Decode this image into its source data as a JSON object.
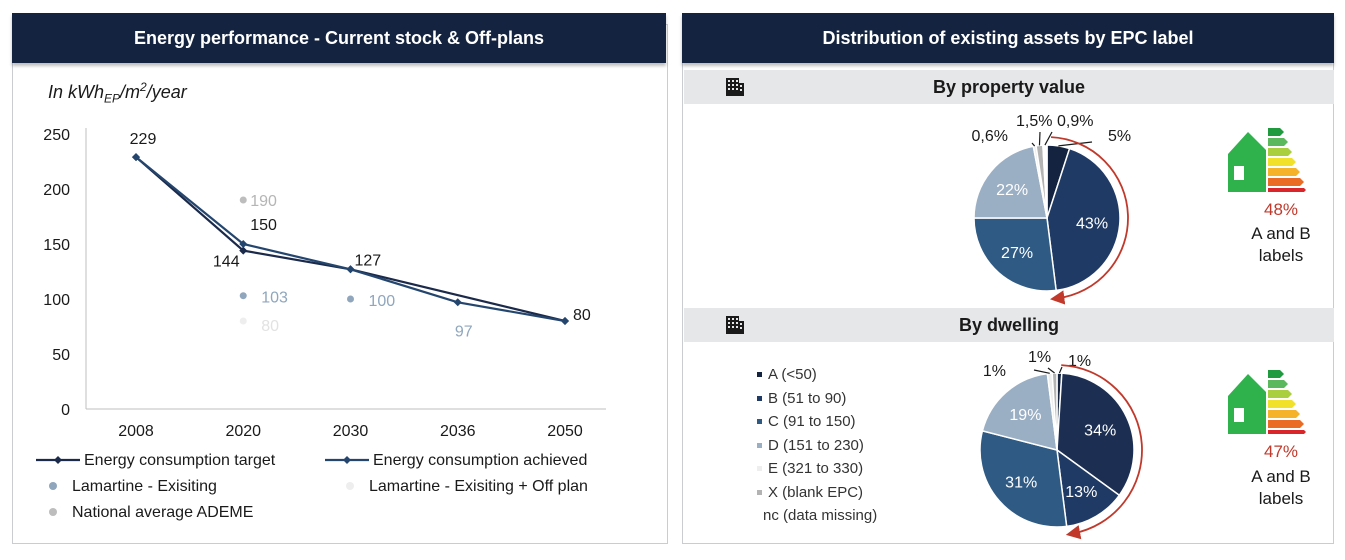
{
  "left_panel": {
    "title": "Energy performance - Current stock & Off-plans",
    "unit_prefix": "In kWh",
    "unit_sub": "EP",
    "unit_mid": "/m",
    "unit_sup": "2",
    "unit_suffix": "/year"
  },
  "right_panel": {
    "title": "Distribution of existing assets by EPC label",
    "by_value_title": "By property value",
    "by_dwelling_title": "By dwelling",
    "by_value_ab_pct": "48%",
    "by_dwelling_ab_pct": "47%",
    "ab_label_line1": "A and B",
    "ab_label_line2": "labels",
    "epc_legend": [
      {
        "label": "A (<50)",
        "color": "#14233f"
      },
      {
        "label": "B (51 to 90)",
        "color": "#1f3a64"
      },
      {
        "label": "C (91 to 150)",
        "color": "#2e5a84"
      },
      {
        "label": "D (151 to 230)",
        "color": "#9aaec4"
      },
      {
        "label": "E (321 to 330)",
        "color": "#eeeeee"
      },
      {
        "label": "X (blank EPC)",
        "color": "#b3b3b3"
      },
      {
        "label": "nc (data missing)",
        "color": ""
      }
    ]
  },
  "line_legend": [
    {
      "label": "Energy consumption target",
      "kind": "line",
      "color": "#1b2a4a"
    },
    {
      "label": "Energy consumption achieved",
      "kind": "line",
      "color": "#24466e"
    },
    {
      "label": "Lamartine - Exisiting",
      "kind": "dot",
      "color": "#8fa6bd"
    },
    {
      "label": "Lamartine - Exisiting + Off plan",
      "kind": "dot",
      "color": "#eeeeee"
    },
    {
      "label": "National average ADEME",
      "kind": "dot",
      "color": "#bdbdbd"
    }
  ],
  "chart_data": [
    {
      "type": "line",
      "x": [
        "2008",
        "2020",
        "2030",
        "2036",
        "2050"
      ],
      "ylim": [
        0,
        250
      ],
      "yticks": [
        0,
        50,
        100,
        150,
        200,
        250
      ],
      "series": [
        {
          "name": "Energy consumption target",
          "color": "#1b2a4a",
          "points": [
            {
              "x": "2008",
              "y": 229
            },
            {
              "x": "2020",
              "y": 144
            },
            {
              "x": "2030",
              "y": 127
            },
            {
              "x": "2050",
              "y": 80
            }
          ]
        },
        {
          "name": "Energy consumption achieved",
          "color": "#24466e",
          "points": [
            {
              "x": "2008",
              "y": 229
            },
            {
              "x": "2020",
              "y": 150
            },
            {
              "x": "2030",
              "y": 127
            },
            {
              "x": "2036",
              "y": 97
            },
            {
              "x": "2050",
              "y": 80
            }
          ]
        },
        {
          "name": "Lamartine - Exisiting",
          "color": "#8fa6bd",
          "kind": "scatter",
          "points": [
            {
              "x": "2020",
              "y": 103
            },
            {
              "x": "2030",
              "y": 100
            }
          ]
        },
        {
          "name": "Lamartine - Exisiting + Off plan",
          "color": "#eeeeee",
          "kind": "scatter",
          "points": [
            {
              "x": "2020",
              "y": 80
            }
          ]
        },
        {
          "name": "National average ADEME",
          "color": "#bdbdbd",
          "kind": "scatter",
          "points": [
            {
              "x": "2020",
              "y": 190
            }
          ]
        }
      ],
      "data_labels": [
        {
          "x": "2008",
          "y": 229,
          "text": "229"
        },
        {
          "x": "2020",
          "y": 150,
          "text": "150"
        },
        {
          "x": "2020",
          "y": 144,
          "text": "144"
        },
        {
          "x": "2020",
          "y": 190,
          "text": "190"
        },
        {
          "x": "2020",
          "y": 103,
          "text": "103"
        },
        {
          "x": "2020",
          "y": 80,
          "text": "80"
        },
        {
          "x": "2030",
          "y": 127,
          "text": "127"
        },
        {
          "x": "2030",
          "y": 100,
          "text": "100"
        },
        {
          "x": "2036",
          "y": 97,
          "text": "97"
        },
        {
          "x": "2050",
          "y": 80,
          "text": "80"
        }
      ]
    },
    {
      "type": "pie",
      "title": "By property value",
      "slices": [
        {
          "label": "A (<50)",
          "value": 5,
          "text": "5%",
          "color": "#14233f"
        },
        {
          "label": "B (51 to 90)",
          "value": 43,
          "text": "43%",
          "color": "#1f3a64"
        },
        {
          "label": "C (91 to 150)",
          "value": 27,
          "text": "27%",
          "color": "#2e5a84"
        },
        {
          "label": "D (151 to 230)",
          "value": 22,
          "text": "22%",
          "color": "#9aaec4"
        },
        {
          "label": "E (321 to 330)",
          "value": 0.6,
          "text": "0,6%",
          "color": "#eeeeee"
        },
        {
          "label": "X (blank EPC)",
          "value": 1.5,
          "text": "1,5%",
          "color": "#b3b3b3"
        },
        {
          "label": "nc (data missing)",
          "value": 0.9,
          "text": "0,9%",
          "color": "#ffffff"
        }
      ]
    },
    {
      "type": "pie",
      "title": "By dwelling",
      "slices": [
        {
          "label": "A (<50)",
          "value": 1,
          "text": "1%",
          "color": "#14233f"
        },
        {
          "label": "B (51 to 90)",
          "value": 34,
          "text": "34%",
          "color": "#1c2f52"
        },
        {
          "label": "B (51 to 90)",
          "value": 13,
          "text": "13%",
          "color": "#1f3a64"
        },
        {
          "label": "C (91 to 150)",
          "value": 31,
          "text": "31%",
          "color": "#2e5a84"
        },
        {
          "label": "D (151 to 230)",
          "value": 19,
          "text": "19%",
          "color": "#9aaec4"
        },
        {
          "label": "E (321 to 330)",
          "value": 1,
          "text": "1%",
          "color": "#eeeeee"
        },
        {
          "label": "X (blank EPC)",
          "value": 1,
          "text": "1%",
          "color": "#b3b3b3"
        }
      ]
    }
  ]
}
